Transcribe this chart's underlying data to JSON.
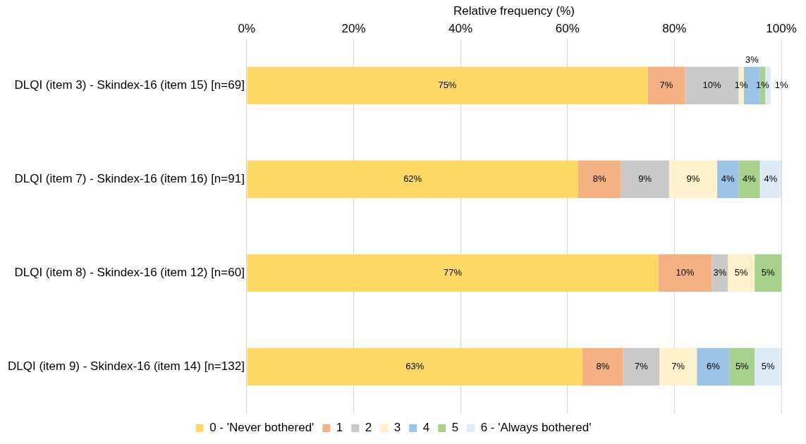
{
  "chart_data": {
    "type": "bar",
    "orientation": "horizontal",
    "stacked": true,
    "xlabel": "Relative frequency (%)",
    "categories": [
      "DLQI (item 3) - Skindex-16 (item 15) [n=69]",
      "DLQI (item 7) - Skindex-16 (item 16) [n=91]",
      "DLQI (item 8) - Skindex-16 (item 12) [n=60]",
      "DLQI (item 9) - Skindex-16 (item 14) [n=132]"
    ],
    "series": [
      {
        "name": "0 - 'Never bothered'",
        "color": "#ffd966",
        "values": [
          75,
          62,
          77,
          62.8
        ],
        "value_labels": [
          "75%",
          "62%",
          "77%",
          "63%"
        ]
      },
      {
        "name": "1",
        "color": "#f4b183",
        "values": [
          7,
          8,
          10,
          7.6
        ],
        "value_labels": [
          "7%",
          "8%",
          "10%",
          "8%"
        ]
      },
      {
        "name": "2",
        "color": "#c9c9c9",
        "values": [
          10,
          9,
          3,
          6.8
        ],
        "value_labels": [
          "10%",
          "9%",
          "3%",
          "7%"
        ]
      },
      {
        "name": "3",
        "color": "#fff2cc",
        "values": [
          1,
          9,
          5,
          7.0
        ],
        "value_labels": [
          "1%",
          "9%",
          "5%",
          "7%"
        ]
      },
      {
        "name": "4",
        "color": "#9dc3e6",
        "values": [
          3,
          4,
          null,
          6.1
        ],
        "value_labels": [
          "3%",
          "4%",
          null,
          "6%"
        ]
      },
      {
        "name": "5",
        "color": "#a9d18e",
        "values": [
          1,
          4,
          5,
          4.7
        ],
        "value_labels": [
          "1%",
          "4%",
          "5%",
          "5%"
        ]
      },
      {
        "name": "6 - 'Always bothered'",
        "color": "#deebf7",
        "values": [
          1,
          4,
          null,
          5.0
        ],
        "value_labels": [
          "1%",
          "4%",
          null,
          "5%"
        ]
      }
    ],
    "xlim": [
      0,
      100
    ],
    "xticks": [
      {
        "value": 0,
        "label": "0%"
      },
      {
        "value": 20,
        "label": "20%"
      },
      {
        "value": 40,
        "label": "40%"
      },
      {
        "value": 60,
        "label": "60%"
      },
      {
        "value": 80,
        "label": "80%"
      },
      {
        "value": 100,
        "label": "100%"
      }
    ],
    "grid": "x",
    "legend": "bottom"
  }
}
